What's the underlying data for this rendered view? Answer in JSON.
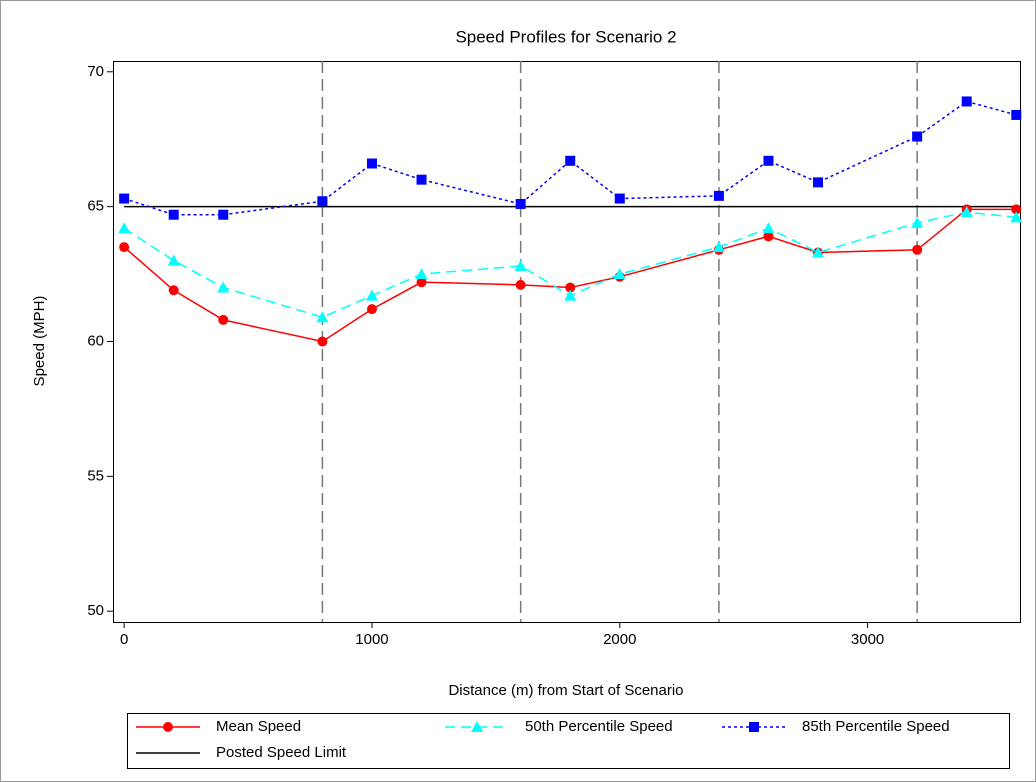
{
  "chart_data": {
    "type": "line",
    "title": "Speed Profiles for Scenario 2",
    "x_label": "Distance (m) from Start of Scenario",
    "y_label": "Speed (MPH)",
    "x": [
      0,
      200,
      400,
      800,
      1000,
      1200,
      1600,
      1800,
      2000,
      2400,
      2600,
      2800,
      3200,
      3400,
      3600
    ],
    "series": [
      {
        "name": "Mean Speed",
        "color": "#ff0000",
        "marker": "circle",
        "dash": "solid",
        "values": [
          63.5,
          61.9,
          60.8,
          60.0,
          61.2,
          62.2,
          62.1,
          62.0,
          62.4,
          63.4,
          63.9,
          63.3,
          63.4,
          64.9,
          64.9
        ]
      },
      {
        "name": "50th Percentile Speed",
        "color": "#00ffff",
        "marker": "triangle",
        "dash": "dashed",
        "values": [
          64.2,
          63.0,
          62.0,
          60.9,
          61.7,
          62.5,
          62.8,
          61.7,
          62.5,
          63.5,
          64.2,
          63.3,
          64.4,
          64.8,
          64.6
        ]
      },
      {
        "name": "85th Percentile Speed",
        "color": "#0000ff",
        "marker": "square",
        "dash": "dotted",
        "values": [
          65.3,
          64.7,
          64.7,
          65.2,
          66.6,
          66.0,
          65.1,
          66.7,
          65.3,
          65.4,
          66.7,
          65.9,
          67.6,
          68.9,
          68.4
        ]
      }
    ],
    "hline": {
      "name": "Posted Speed Limit",
      "value": 65,
      "color": "#000000"
    },
    "reference_lines": [
      800,
      1600,
      2400,
      3200
    ],
    "xlim": [
      -45,
      3615
    ],
    "ylim": [
      49.6,
      70.4
    ],
    "xticks": [
      0,
      1000,
      2000,
      3000
    ],
    "yticks": [
      50,
      55,
      60,
      65,
      70
    ],
    "legend": "bottom"
  }
}
